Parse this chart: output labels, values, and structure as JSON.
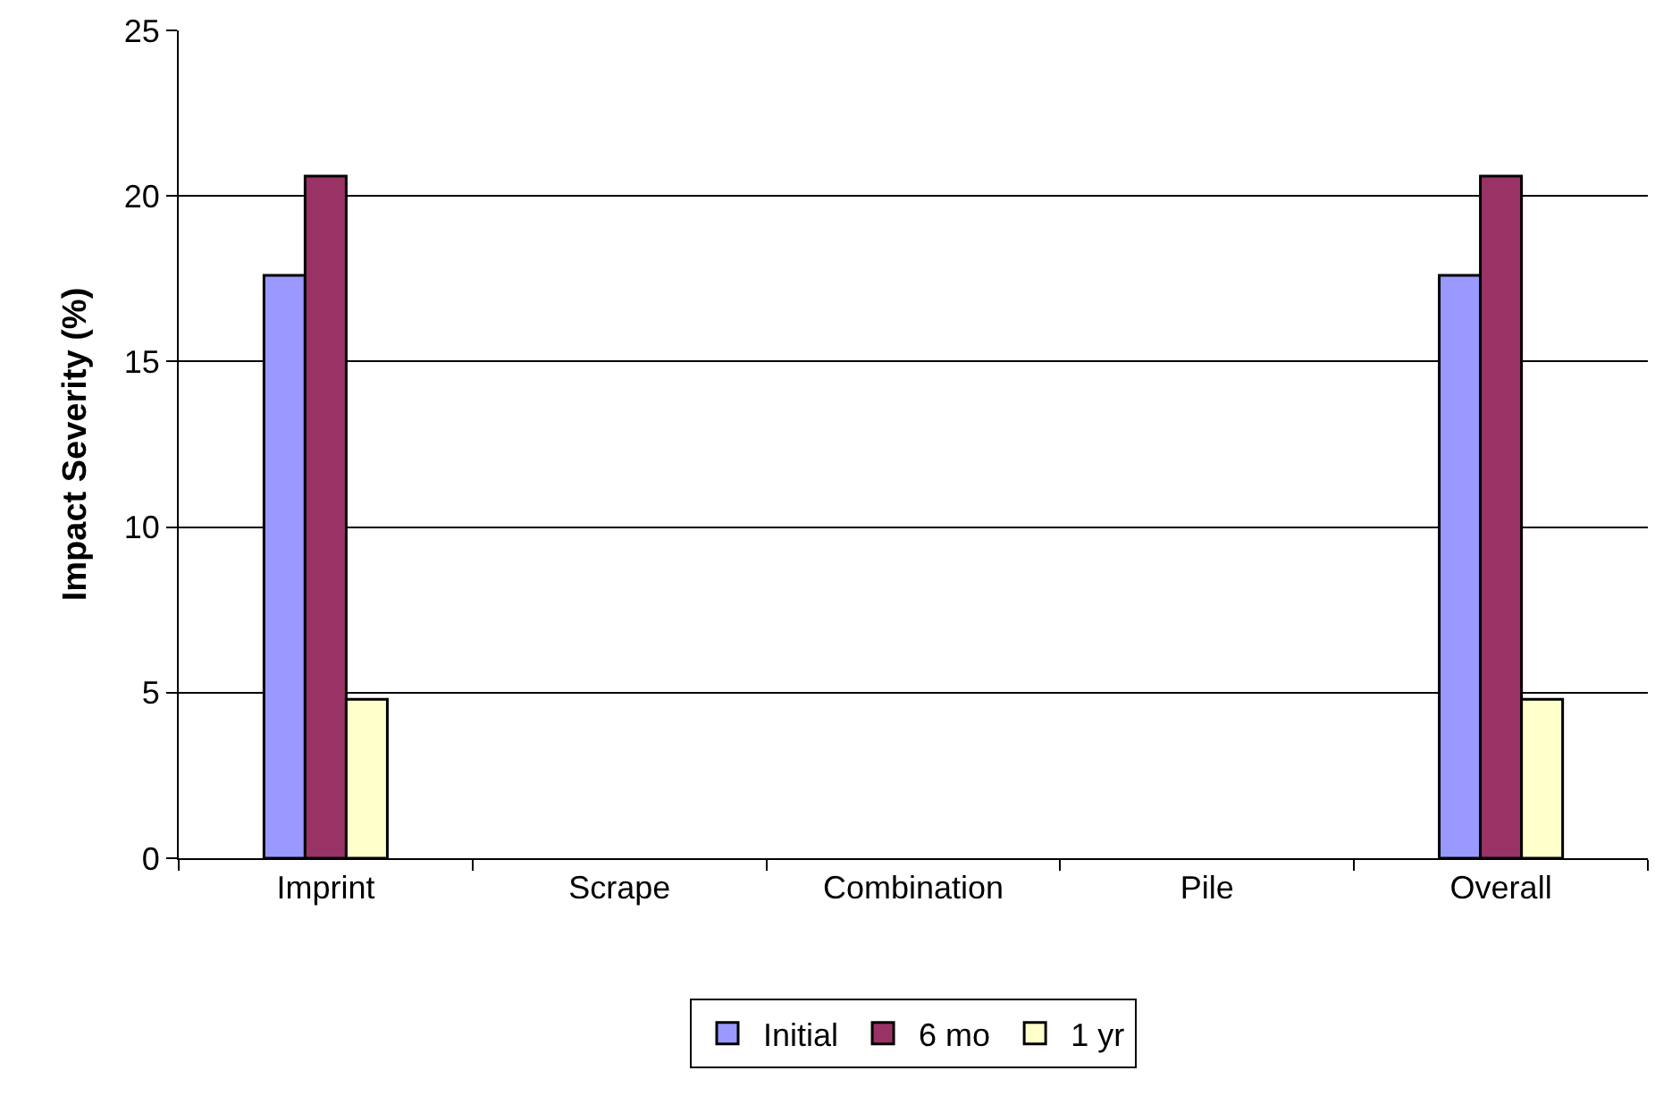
{
  "chart_data": {
    "type": "bar",
    "ylabel": "Impact Severity (%)",
    "categories": [
      "Imprint",
      "Scrape",
      "Combination",
      "Pile",
      "Overall"
    ],
    "series": [
      {
        "name": "Initial",
        "color": "#9999ff",
        "values": [
          17.6,
          0,
          0,
          0,
          17.6
        ]
      },
      {
        "name": "6 mo",
        "color": "#993366",
        "values": [
          20.6,
          0,
          0,
          0,
          20.6
        ]
      },
      {
        "name": "1 yr",
        "color": "#ffffcc",
        "values": [
          4.8,
          0,
          0,
          0,
          4.8
        ]
      }
    ],
    "ylim": [
      0,
      25
    ],
    "yticks": [
      0,
      5,
      10,
      15,
      20,
      25
    ],
    "grid": "y",
    "legend": "bottom"
  }
}
